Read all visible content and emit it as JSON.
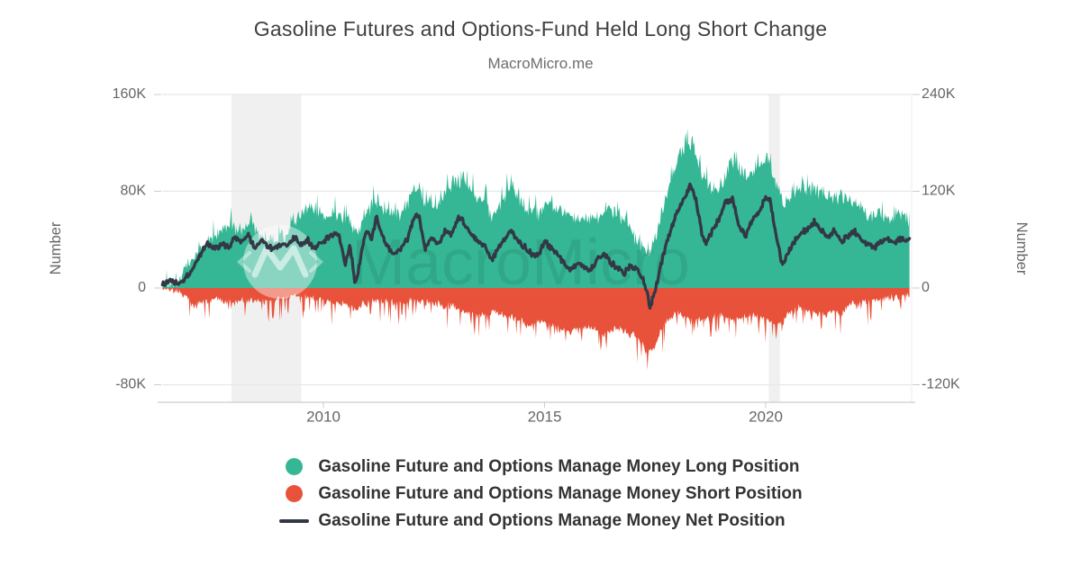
{
  "header": {
    "title": "Gasoline Futures and Options-Fund Held Long Short Change",
    "subtitle": "MacroMicro.me"
  },
  "chart_data": {
    "type": "area+line",
    "value_unit": "thousand contracts",
    "x_axis": {
      "labels": [
        "2010",
        "2015",
        "2020"
      ],
      "label_years": [
        2010,
        2015,
        2020
      ],
      "range_years": [
        2006.36,
        2023.25
      ]
    },
    "y_left": {
      "title": "Number",
      "ticks": [
        "160K",
        "80K",
        "0",
        "-80K"
      ],
      "tick_values": [
        160,
        80,
        0,
        -80
      ]
    },
    "y_right": {
      "title": "Number",
      "ticks": [
        "240K",
        "120K",
        "0",
        "-120K"
      ],
      "tick_values": [
        240,
        120,
        0,
        -120
      ]
    },
    "grid": "horizontal",
    "recession_bands": [
      [
        2007.92,
        2009.5
      ],
      [
        2020.07,
        2020.32
      ]
    ],
    "watermark": {
      "text": "MacroMicro"
    },
    "colors": {
      "long": "#35b795",
      "short": "#e8523a",
      "net": "#333846",
      "band": "#f0f0f0",
      "gridline": "#e7e7e7",
      "axis_text": "#666666"
    },
    "series": [
      {
        "name": "Gasoline Future and Options Manage Money Long Position",
        "type": "area",
        "axis": "left",
        "color": "#35b795",
        "swatch": "dot",
        "texture": {
          "amp": 8,
          "spike": 15,
          "spike_dir": 1
        },
        "points": [
          [
            2006.36,
            1.5
          ],
          [
            2006.6,
            5
          ],
          [
            2006.8,
            10
          ],
          [
            2007.0,
            22
          ],
          [
            2007.2,
            32
          ],
          [
            2007.45,
            40
          ],
          [
            2007.7,
            47
          ],
          [
            2007.95,
            52
          ],
          [
            2008.15,
            46
          ],
          [
            2008.35,
            58
          ],
          [
            2008.55,
            42
          ],
          [
            2008.75,
            40
          ],
          [
            2008.95,
            38
          ],
          [
            2009.2,
            46
          ],
          [
            2009.45,
            58
          ],
          [
            2009.65,
            66
          ],
          [
            2009.9,
            62
          ],
          [
            2010.1,
            58
          ],
          [
            2010.3,
            62
          ],
          [
            2010.5,
            60
          ],
          [
            2010.65,
            46
          ],
          [
            2010.8,
            48
          ],
          [
            2010.95,
            60
          ],
          [
            2011.1,
            66
          ],
          [
            2011.25,
            70
          ],
          [
            2011.5,
            62
          ],
          [
            2011.7,
            60
          ],
          [
            2011.9,
            68
          ],
          [
            2012.1,
            86
          ],
          [
            2012.3,
            72
          ],
          [
            2012.55,
            70
          ],
          [
            2012.8,
            82
          ],
          [
            2013.0,
            88
          ],
          [
            2013.2,
            90
          ],
          [
            2013.4,
            78
          ],
          [
            2013.6,
            72
          ],
          [
            2013.8,
            60
          ],
          [
            2014.0,
            66
          ],
          [
            2014.25,
            86
          ],
          [
            2014.45,
            72
          ],
          [
            2014.7,
            65
          ],
          [
            2014.9,
            62
          ],
          [
            2015.1,
            74
          ],
          [
            2015.3,
            66
          ],
          [
            2015.55,
            62
          ],
          [
            2015.8,
            56
          ],
          [
            2016.0,
            58
          ],
          [
            2016.25,
            60
          ],
          [
            2016.5,
            66
          ],
          [
            2016.75,
            58
          ],
          [
            2017.0,
            44
          ],
          [
            2017.2,
            34
          ],
          [
            2017.35,
            26
          ],
          [
            2017.5,
            42
          ],
          [
            2017.7,
            70
          ],
          [
            2017.9,
            95
          ],
          [
            2018.05,
            112
          ],
          [
            2018.2,
            118
          ],
          [
            2018.35,
            122
          ],
          [
            2018.5,
            100
          ],
          [
            2018.7,
            84
          ],
          [
            2018.9,
            80
          ],
          [
            2019.1,
            95
          ],
          [
            2019.3,
            104
          ],
          [
            2019.5,
            92
          ],
          [
            2019.7,
            96
          ],
          [
            2019.9,
            102
          ],
          [
            2020.05,
            108
          ],
          [
            2020.2,
            88
          ],
          [
            2020.4,
            68
          ],
          [
            2020.6,
            76
          ],
          [
            2020.8,
            84
          ],
          [
            2021.0,
            82
          ],
          [
            2021.2,
            80
          ],
          [
            2021.4,
            76
          ],
          [
            2021.6,
            74
          ],
          [
            2021.9,
            76
          ],
          [
            2022.1,
            70
          ],
          [
            2022.3,
            60
          ],
          [
            2022.5,
            62
          ],
          [
            2022.7,
            58
          ],
          [
            2022.9,
            58
          ],
          [
            2023.1,
            62
          ],
          [
            2023.25,
            56
          ]
        ]
      },
      {
        "name": "Gasoline Future and Options Manage Money Short Position",
        "type": "area",
        "axis": "left",
        "color": "#e8523a",
        "swatch": "dot",
        "texture": {
          "amp": 4,
          "spike": 19,
          "spike_dir": -1
        },
        "points": [
          [
            2006.36,
            -1
          ],
          [
            2006.7,
            -3
          ],
          [
            2006.95,
            -8
          ],
          [
            2007.08,
            -15
          ],
          [
            2007.3,
            -11
          ],
          [
            2007.55,
            -9
          ],
          [
            2007.8,
            -11
          ],
          [
            2008.0,
            -12
          ],
          [
            2008.25,
            -9
          ],
          [
            2008.5,
            -12
          ],
          [
            2008.75,
            -11
          ],
          [
            2009.0,
            -9
          ],
          [
            2009.3,
            -6
          ],
          [
            2009.6,
            -7
          ],
          [
            2009.9,
            -9
          ],
          [
            2010.15,
            -11
          ],
          [
            2010.4,
            -13
          ],
          [
            2010.6,
            -15
          ],
          [
            2010.75,
            -19
          ],
          [
            2010.9,
            -13
          ],
          [
            2011.15,
            -10
          ],
          [
            2011.4,
            -11
          ],
          [
            2011.65,
            -12
          ],
          [
            2011.9,
            -11
          ],
          [
            2012.15,
            -10
          ],
          [
            2012.4,
            -12
          ],
          [
            2012.65,
            -14
          ],
          [
            2012.9,
            -15
          ],
          [
            2013.15,
            -18
          ],
          [
            2013.4,
            -23
          ],
          [
            2013.65,
            -21
          ],
          [
            2013.9,
            -20
          ],
          [
            2014.15,
            -23
          ],
          [
            2014.4,
            -26
          ],
          [
            2014.65,
            -31
          ],
          [
            2014.85,
            -27
          ],
          [
            2015.1,
            -29
          ],
          [
            2015.35,
            -34
          ],
          [
            2015.6,
            -36
          ],
          [
            2015.85,
            -32
          ],
          [
            2016.1,
            -34
          ],
          [
            2016.35,
            -38
          ],
          [
            2016.6,
            -32
          ],
          [
            2016.85,
            -36
          ],
          [
            2017.1,
            -42
          ],
          [
            2017.3,
            -50
          ],
          [
            2017.45,
            -52
          ],
          [
            2017.6,
            -38
          ],
          [
            2017.8,
            -26
          ],
          [
            2018.0,
            -22
          ],
          [
            2018.2,
            -24
          ],
          [
            2018.45,
            -28
          ],
          [
            2018.7,
            -25
          ],
          [
            2018.95,
            -22
          ],
          [
            2019.2,
            -26
          ],
          [
            2019.45,
            -24
          ],
          [
            2019.7,
            -22
          ],
          [
            2019.95,
            -26
          ],
          [
            2020.15,
            -28
          ],
          [
            2020.35,
            -30
          ],
          [
            2020.55,
            -20
          ],
          [
            2020.75,
            -16
          ],
          [
            2020.95,
            -19
          ],
          [
            2021.15,
            -21
          ],
          [
            2021.35,
            -22
          ],
          [
            2021.55,
            -19
          ],
          [
            2021.7,
            -22
          ],
          [
            2021.9,
            -13
          ],
          [
            2022.1,
            -13
          ],
          [
            2022.35,
            -11
          ],
          [
            2022.6,
            -9
          ],
          [
            2022.85,
            -8
          ],
          [
            2023.05,
            -7
          ],
          [
            2023.25,
            -6
          ]
        ]
      },
      {
        "name": "Gasoline Future and Options Manage Money Net Position",
        "type": "line",
        "axis": "right",
        "color": "#333846",
        "swatch": "line",
        "texture": {
          "amp": 4.5,
          "spike": 0,
          "spike_dir": 0
        },
        "points": [
          [
            2006.36,
            5
          ],
          [
            2006.6,
            8
          ],
          [
            2006.75,
            7
          ],
          [
            2006.95,
            16
          ],
          [
            2007.1,
            28
          ],
          [
            2007.25,
            45
          ],
          [
            2007.4,
            55
          ],
          [
            2007.55,
            48
          ],
          [
            2007.7,
            56
          ],
          [
            2007.85,
            50
          ],
          [
            2008.0,
            62
          ],
          [
            2008.15,
            58
          ],
          [
            2008.3,
            66
          ],
          [
            2008.45,
            50
          ],
          [
            2008.6,
            60
          ],
          [
            2008.75,
            52
          ],
          [
            2008.9,
            48
          ],
          [
            2009.05,
            56
          ],
          [
            2009.2,
            50
          ],
          [
            2009.35,
            62
          ],
          [
            2009.5,
            55
          ],
          [
            2009.65,
            60
          ],
          [
            2009.8,
            48
          ],
          [
            2009.95,
            55
          ],
          [
            2010.1,
            62
          ],
          [
            2010.25,
            68
          ],
          [
            2010.35,
            66
          ],
          [
            2010.5,
            28
          ],
          [
            2010.6,
            55
          ],
          [
            2010.72,
            4
          ],
          [
            2010.85,
            40
          ],
          [
            2010.95,
            70
          ],
          [
            2011.1,
            62
          ],
          [
            2011.2,
            90
          ],
          [
            2011.3,
            70
          ],
          [
            2011.45,
            52
          ],
          [
            2011.6,
            42
          ],
          [
            2011.75,
            50
          ],
          [
            2011.9,
            62
          ],
          [
            2012.05,
            88
          ],
          [
            2012.15,
            92
          ],
          [
            2012.3,
            48
          ],
          [
            2012.45,
            62
          ],
          [
            2012.6,
            55
          ],
          [
            2012.75,
            72
          ],
          [
            2012.9,
            68
          ],
          [
            2013.05,
            88
          ],
          [
            2013.2,
            80
          ],
          [
            2013.35,
            65
          ],
          [
            2013.5,
            58
          ],
          [
            2013.65,
            52
          ],
          [
            2013.8,
            35
          ],
          [
            2013.95,
            48
          ],
          [
            2014.1,
            62
          ],
          [
            2014.25,
            72
          ],
          [
            2014.4,
            58
          ],
          [
            2014.55,
            50
          ],
          [
            2014.7,
            42
          ],
          [
            2014.85,
            40
          ],
          [
            2015.0,
            58
          ],
          [
            2015.15,
            50
          ],
          [
            2015.3,
            42
          ],
          [
            2015.45,
            30
          ],
          [
            2015.6,
            22
          ],
          [
            2015.75,
            32
          ],
          [
            2015.9,
            26
          ],
          [
            2016.05,
            22
          ],
          [
            2016.2,
            35
          ],
          [
            2016.35,
            42
          ],
          [
            2016.5,
            32
          ],
          [
            2016.65,
            25
          ],
          [
            2016.8,
            18
          ],
          [
            2016.95,
            28
          ],
          [
            2017.1,
            22
          ],
          [
            2017.25,
            8
          ],
          [
            2017.38,
            -22
          ],
          [
            2017.5,
            -5
          ],
          [
            2017.62,
            25
          ],
          [
            2017.75,
            55
          ],
          [
            2017.9,
            80
          ],
          [
            2018.05,
            100
          ],
          [
            2018.2,
            118
          ],
          [
            2018.3,
            130
          ],
          [
            2018.42,
            110
          ],
          [
            2018.55,
            70
          ],
          [
            2018.65,
            55
          ],
          [
            2018.8,
            72
          ],
          [
            2018.95,
            85
          ],
          [
            2019.1,
            108
          ],
          [
            2019.25,
            112
          ],
          [
            2019.4,
            75
          ],
          [
            2019.55,
            65
          ],
          [
            2019.7,
            85
          ],
          [
            2019.85,
            95
          ],
          [
            2020.0,
            112
          ],
          [
            2020.1,
            108
          ],
          [
            2020.25,
            60
          ],
          [
            2020.38,
            28
          ],
          [
            2020.5,
            42
          ],
          [
            2020.65,
            58
          ],
          [
            2020.8,
            68
          ],
          [
            2020.95,
            72
          ],
          [
            2021.1,
            82
          ],
          [
            2021.25,
            72
          ],
          [
            2021.4,
            62
          ],
          [
            2021.55,
            72
          ],
          [
            2021.7,
            58
          ],
          [
            2021.85,
            65
          ],
          [
            2022.0,
            70
          ],
          [
            2022.15,
            62
          ],
          [
            2022.3,
            55
          ],
          [
            2022.45,
            50
          ],
          [
            2022.6,
            58
          ],
          [
            2022.75,
            62
          ],
          [
            2022.9,
            55
          ],
          [
            2023.05,
            62
          ],
          [
            2023.15,
            58
          ],
          [
            2023.25,
            62
          ]
        ]
      }
    ]
  },
  "legend": [
    {
      "label": "Gasoline Future and Options Manage Money Long Position",
      "color": "#35b795",
      "swatch": "dot"
    },
    {
      "label": "Gasoline Future and Options Manage Money Short Position",
      "color": "#e8523a",
      "swatch": "dot"
    },
    {
      "label": "Gasoline Future and Options Manage Money Net Position",
      "color": "#333846",
      "swatch": "line"
    }
  ]
}
